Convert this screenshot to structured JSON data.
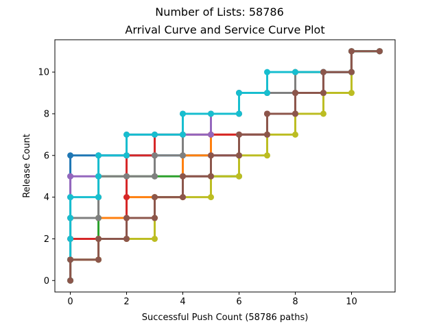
{
  "chart_data": {
    "type": "line",
    "suptitle": "Number of Lists: 58786",
    "title": "Arrival Curve and Service Curve Plot",
    "xlabel": "Successful Push Count (58786 paths)",
    "ylabel": "Release Count",
    "xlim": [
      -0.55,
      11.55
    ],
    "ylim": [
      -0.55,
      11.55
    ],
    "xticks": [
      0,
      2,
      4,
      6,
      8,
      10
    ],
    "yticks": [
      0,
      2,
      4,
      6,
      8,
      10
    ],
    "grid": false,
    "legend": "none",
    "colors": [
      "#1f77b4",
      "#ff7f0e",
      "#2ca02c",
      "#d62728",
      "#9467bd",
      "#8c564b",
      "#e377c2",
      "#7f7f7f",
      "#bcbd22",
      "#17becf"
    ],
    "series": [
      {
        "color": "#1f77b4",
        "points": [
          [
            0,
            0
          ],
          [
            0,
            1
          ],
          [
            0,
            2
          ],
          [
            0,
            3
          ],
          [
            0,
            4
          ],
          [
            0,
            5
          ],
          [
            0,
            6
          ],
          [
            1,
            6
          ],
          [
            2,
            6
          ],
          [
            3,
            6
          ],
          [
            4,
            6
          ],
          [
            5,
            6
          ],
          [
            6,
            6
          ],
          [
            6,
            7
          ],
          [
            7,
            7
          ],
          [
            7,
            8
          ],
          [
            8,
            8
          ],
          [
            8,
            9
          ],
          [
            9,
            9
          ],
          [
            9,
            10
          ],
          [
            10,
            10
          ],
          [
            10,
            11
          ],
          [
            11,
            11
          ]
        ]
      },
      {
        "color": "#ff7f0e",
        "points": [
          [
            0,
            0
          ],
          [
            0,
            1
          ],
          [
            0,
            2
          ],
          [
            0,
            3
          ],
          [
            1,
            3
          ],
          [
            2,
            3
          ],
          [
            2,
            4
          ],
          [
            3,
            4
          ],
          [
            4,
            4
          ],
          [
            4,
            5
          ],
          [
            4,
            6
          ],
          [
            5,
            6
          ],
          [
            5,
            7
          ],
          [
            6,
            7
          ],
          [
            7,
            7
          ],
          [
            7,
            8
          ],
          [
            8,
            8
          ],
          [
            8,
            9
          ],
          [
            8,
            10
          ],
          [
            9,
            10
          ],
          [
            10,
            10
          ],
          [
            10,
            11
          ],
          [
            11,
            11
          ]
        ]
      },
      {
        "color": "#2ca02c",
        "points": [
          [
            0,
            0
          ],
          [
            0,
            1
          ],
          [
            1,
            1
          ],
          [
            1,
            2
          ],
          [
            1,
            3
          ],
          [
            1,
            4
          ],
          [
            1,
            5
          ],
          [
            2,
            5
          ],
          [
            3,
            5
          ],
          [
            4,
            5
          ],
          [
            5,
            5
          ],
          [
            6,
            5
          ],
          [
            6,
            6
          ],
          [
            6,
            7
          ],
          [
            7,
            7
          ],
          [
            7,
            8
          ],
          [
            8,
            8
          ],
          [
            8,
            9
          ],
          [
            9,
            9
          ],
          [
            9,
            10
          ],
          [
            10,
            10
          ],
          [
            10,
            11
          ],
          [
            11,
            11
          ]
        ]
      },
      {
        "color": "#d62728",
        "points": [
          [
            0,
            0
          ],
          [
            0,
            1
          ],
          [
            0,
            2
          ],
          [
            1,
            2
          ],
          [
            2,
            2
          ],
          [
            2,
            3
          ],
          [
            2,
            4
          ],
          [
            2,
            5
          ],
          [
            2,
            6
          ],
          [
            3,
            6
          ],
          [
            3,
            7
          ],
          [
            4,
            7
          ],
          [
            5,
            7
          ],
          [
            6,
            7
          ],
          [
            7,
            7
          ],
          [
            7,
            8
          ],
          [
            8,
            8
          ],
          [
            8,
            9
          ],
          [
            9,
            9
          ],
          [
            9,
            10
          ],
          [
            10,
            10
          ],
          [
            10,
            11
          ],
          [
            11,
            11
          ]
        ]
      },
      {
        "color": "#9467bd",
        "points": [
          [
            0,
            0
          ],
          [
            0,
            1
          ],
          [
            0,
            2
          ],
          [
            0,
            3
          ],
          [
            0,
            4
          ],
          [
            0,
            5
          ],
          [
            1,
            5
          ],
          [
            1,
            6
          ],
          [
            2,
            6
          ],
          [
            2,
            7
          ],
          [
            3,
            7
          ],
          [
            4,
            7
          ],
          [
            5,
            7
          ],
          [
            5,
            8
          ],
          [
            6,
            8
          ],
          [
            6,
            9
          ],
          [
            7,
            9
          ],
          [
            8,
            9
          ],
          [
            9,
            9
          ],
          [
            9,
            10
          ],
          [
            10,
            10
          ],
          [
            10,
            11
          ],
          [
            11,
            11
          ]
        ]
      },
      {
        "color": "#e377c2",
        "points": [
          [
            0,
            0
          ],
          [
            0,
            1
          ],
          [
            1,
            1
          ],
          [
            1,
            2
          ],
          [
            2,
            2
          ],
          [
            2,
            3
          ],
          [
            3,
            3
          ],
          [
            3,
            4
          ],
          [
            4,
            4
          ],
          [
            4,
            5
          ],
          [
            5,
            5
          ],
          [
            5,
            6
          ],
          [
            6,
            6
          ],
          [
            6,
            7
          ],
          [
            7,
            7
          ],
          [
            7,
            8
          ],
          [
            8,
            8
          ],
          [
            8,
            9
          ],
          [
            9,
            9
          ],
          [
            9,
            10
          ],
          [
            10,
            10
          ],
          [
            10,
            11
          ],
          [
            11,
            11
          ]
        ]
      },
      {
        "color": "#7f7f7f",
        "points": [
          [
            0,
            0
          ],
          [
            0,
            1
          ],
          [
            0,
            2
          ],
          [
            0,
            3
          ],
          [
            1,
            3
          ],
          [
            1,
            4
          ],
          [
            1,
            5
          ],
          [
            2,
            5
          ],
          [
            3,
            5
          ],
          [
            3,
            6
          ],
          [
            4,
            6
          ],
          [
            4,
            7
          ],
          [
            4,
            8
          ],
          [
            5,
            8
          ],
          [
            6,
            8
          ],
          [
            6,
            9
          ],
          [
            7,
            9
          ],
          [
            8,
            9
          ],
          [
            8,
            10
          ],
          [
            9,
            10
          ],
          [
            10,
            10
          ],
          [
            10,
            11
          ],
          [
            11,
            11
          ]
        ]
      },
      {
        "color": "#bcbd22",
        "points": [
          [
            0,
            0
          ],
          [
            0,
            1
          ],
          [
            1,
            1
          ],
          [
            1,
            2
          ],
          [
            2,
            2
          ],
          [
            3,
            2
          ],
          [
            3,
            3
          ],
          [
            3,
            4
          ],
          [
            4,
            4
          ],
          [
            5,
            4
          ],
          [
            5,
            5
          ],
          [
            6,
            5
          ],
          [
            6,
            6
          ],
          [
            7,
            6
          ],
          [
            7,
            7
          ],
          [
            8,
            7
          ],
          [
            8,
            8
          ],
          [
            9,
            8
          ],
          [
            9,
            9
          ],
          [
            10,
            9
          ],
          [
            10,
            10
          ],
          [
            10,
            11
          ],
          [
            11,
            11
          ]
        ]
      },
      {
        "color": "#17becf",
        "points": [
          [
            0,
            0
          ],
          [
            0,
            1
          ],
          [
            0,
            2
          ],
          [
            0,
            3
          ],
          [
            0,
            4
          ],
          [
            1,
            4
          ],
          [
            1,
            5
          ],
          [
            1,
            6
          ],
          [
            2,
            6
          ],
          [
            2,
            7
          ],
          [
            3,
            7
          ],
          [
            4,
            7
          ],
          [
            4,
            8
          ],
          [
            5,
            8
          ],
          [
            6,
            8
          ],
          [
            6,
            9
          ],
          [
            7,
            9
          ],
          [
            7,
            10
          ],
          [
            8,
            10
          ],
          [
            9,
            10
          ],
          [
            10,
            10
          ],
          [
            10,
            11
          ],
          [
            11,
            11
          ]
        ]
      },
      {
        "color": "#8c564b",
        "points": [
          [
            0,
            0
          ],
          [
            0,
            1
          ],
          [
            1,
            1
          ],
          [
            1,
            2
          ],
          [
            2,
            2
          ],
          [
            2,
            3
          ],
          [
            3,
            3
          ],
          [
            3,
            4
          ],
          [
            4,
            4
          ],
          [
            4,
            5
          ],
          [
            5,
            5
          ],
          [
            5,
            6
          ],
          [
            6,
            6
          ],
          [
            6,
            7
          ],
          [
            7,
            7
          ],
          [
            7,
            8
          ],
          [
            8,
            8
          ],
          [
            8,
            9
          ],
          [
            9,
            9
          ],
          [
            9,
            10
          ],
          [
            10,
            10
          ],
          [
            10,
            11
          ],
          [
            11,
            11
          ]
        ]
      }
    ]
  }
}
